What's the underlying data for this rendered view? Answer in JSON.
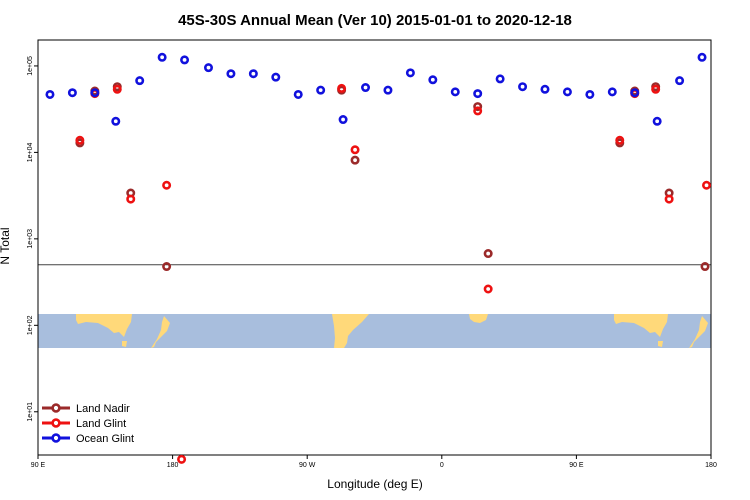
{
  "chart_data": {
    "type": "scatter",
    "title": "45S-30S Annual Mean (Ver 10)   2015-01-01 to 2020-12-18",
    "xlabel": "Longitude (deg E)",
    "ylabel": "N Total",
    "xlim": [
      90,
      540
    ],
    "ylim_log10": [
      0.5,
      5.3
    ],
    "x_ticks": [
      {
        "value": 90,
        "label": "90 E"
      },
      {
        "value": 180,
        "label": "180"
      },
      {
        "value": 270,
        "label": "90 W"
      },
      {
        "value": 360,
        "label": "0"
      },
      {
        "value": 450,
        "label": "90 E"
      },
      {
        "value": 540,
        "label": "180"
      }
    ],
    "y_ticks": [
      {
        "value": 1,
        "label": "1e+01"
      },
      {
        "value": 2,
        "label": "1e+02"
      },
      {
        "value": 3,
        "label": "1e+03"
      },
      {
        "value": 4,
        "label": "1e+04"
      },
      {
        "value": 5,
        "label": "1e+05"
      }
    ],
    "reference_line": 2.7,
    "map_band": {
      "colors": {
        "ocean": "#a8bedd",
        "land": "#ffd97a"
      }
    },
    "series": [
      {
        "name": "Land Nadir",
        "color": "#9b2a2a",
        "points": [
          [
            118,
            4.11
          ],
          [
            128,
            4.71
          ],
          [
            143,
            4.76
          ],
          [
            152,
            3.53
          ],
          [
            176,
            2.68
          ],
          [
            293,
            4.72
          ],
          [
            302,
            3.91
          ],
          [
            384,
            4.53
          ],
          [
            391,
            2.83
          ],
          [
            479,
            4.11
          ],
          [
            489,
            4.71
          ],
          [
            503,
            4.76
          ],
          [
            512,
            3.53
          ],
          [
            536,
            2.68
          ]
        ]
      },
      {
        "name": "Land Glint",
        "color": "#ee1111",
        "points": [
          [
            118,
            4.14
          ],
          [
            128,
            4.68
          ],
          [
            143,
            4.73
          ],
          [
            152,
            3.46
          ],
          [
            176,
            3.62
          ],
          [
            186,
            0.45
          ],
          [
            293,
            4.74
          ],
          [
            302,
            4.03
          ],
          [
            384,
            4.48
          ],
          [
            391,
            2.42
          ],
          [
            479,
            4.14
          ],
          [
            489,
            4.68
          ],
          [
            503,
            4.73
          ],
          [
            512,
            3.46
          ],
          [
            537,
            3.62
          ]
        ]
      },
      {
        "name": "Ocean Glint",
        "color": "#1111dd",
        "points": [
          [
            98,
            4.67
          ],
          [
            113,
            4.69
          ],
          [
            128,
            4.69
          ],
          [
            142,
            4.36
          ],
          [
            158,
            4.83
          ],
          [
            173,
            5.1
          ],
          [
            188,
            5.07
          ],
          [
            204,
            4.98
          ],
          [
            219,
            4.91
          ],
          [
            234,
            4.91
          ],
          [
            249,
            4.87
          ],
          [
            264,
            4.67
          ],
          [
            279,
            4.72
          ],
          [
            294,
            4.38
          ],
          [
            309,
            4.75
          ],
          [
            324,
            4.72
          ],
          [
            339,
            4.92
          ],
          [
            354,
            4.84
          ],
          [
            369,
            4.7
          ],
          [
            384,
            4.68
          ],
          [
            399,
            4.85
          ],
          [
            414,
            4.76
          ],
          [
            429,
            4.73
          ],
          [
            444,
            4.7
          ],
          [
            459,
            4.67
          ],
          [
            474,
            4.7
          ],
          [
            489,
            4.69
          ],
          [
            504,
            4.36
          ],
          [
            519,
            4.83
          ],
          [
            534,
            5.1
          ]
        ]
      }
    ]
  }
}
